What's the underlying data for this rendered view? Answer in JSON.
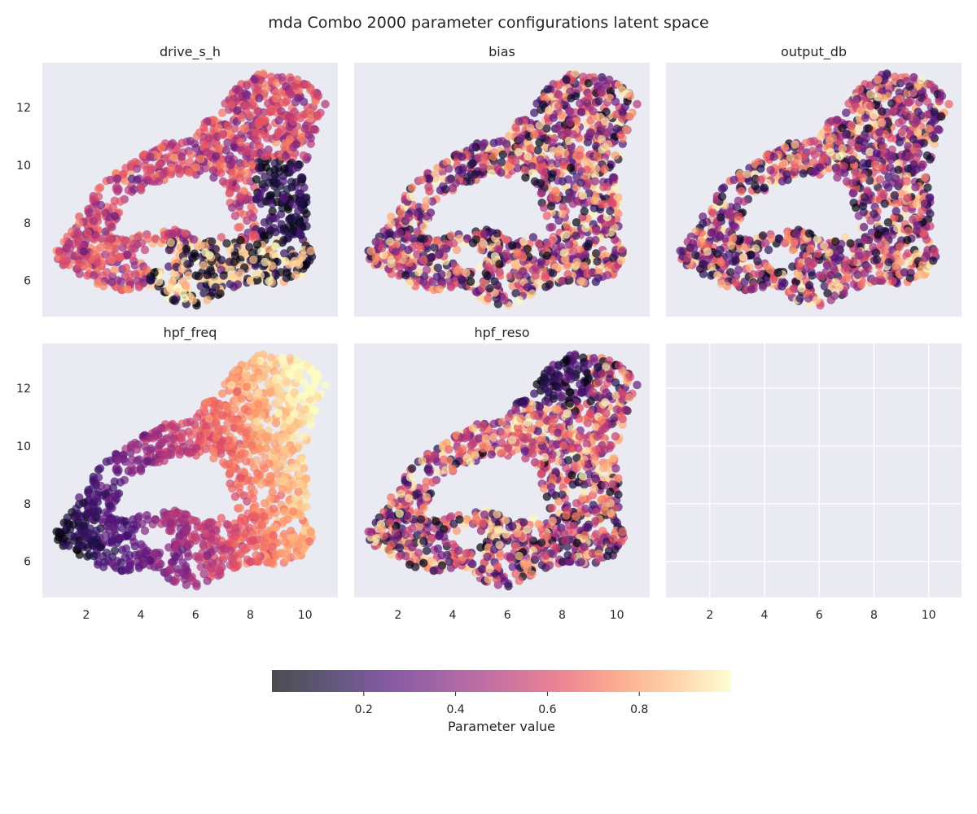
{
  "figure": {
    "title": "mda Combo 2000 parameter configurations latent space"
  },
  "chart_data": {
    "type": "scatter",
    "xlim": [
      0.4,
      11.2
    ],
    "ylim": [
      4.75,
      13.55
    ],
    "x_ticks": [
      2,
      4,
      6,
      8,
      10
    ],
    "y_ticks": [
      6,
      8,
      10,
      12
    ],
    "grid": true,
    "background": "#eaeaf2",
    "colormap": "magma",
    "point_opacity": 0.7,
    "sample_points_per_panel": 1300,
    "panels": [
      {
        "name": "drive_s_h",
        "title": "drive_s_h",
        "pattern": "drive"
      },
      {
        "name": "bias",
        "title": "bias",
        "pattern": "random1"
      },
      {
        "name": "output_db",
        "title": "output_db",
        "pattern": "random2"
      },
      {
        "name": "hpf_freq",
        "title": "hpf_freq",
        "pattern": "freq"
      },
      {
        "name": "hpf_reso",
        "title": "hpf_reso",
        "pattern": "reso"
      },
      {
        "name": "empty",
        "title": "",
        "pattern": "none"
      }
    ],
    "colorbar": {
      "label": "Parameter value",
      "range": [
        0.0,
        1.0
      ],
      "ticks": [
        0.2,
        0.4,
        0.6,
        0.8
      ]
    }
  }
}
